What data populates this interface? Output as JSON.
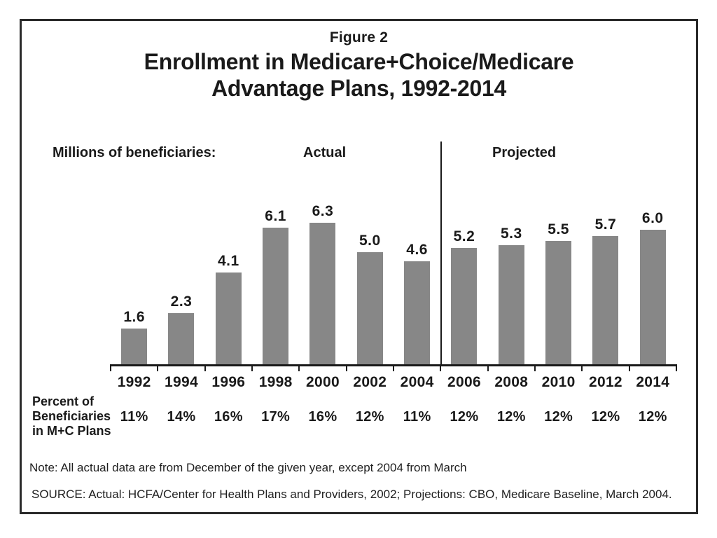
{
  "figure": {
    "label": "Figure 2",
    "title_line1": "Enrollment in Medicare+Choice/Medicare",
    "title_line2": "Advantage Plans, 1992-2014"
  },
  "chart_data": {
    "type": "bar",
    "title": "Enrollment in Medicare+Choice/Medicare Advantage Plans, 1992-2014",
    "unit_label": "Millions of beneficiaries:",
    "section_labels": {
      "actual": "Actual",
      "projected": "Projected"
    },
    "actual_categories_count": 7,
    "categories": [
      "1992",
      "1994",
      "1996",
      "1998",
      "2000",
      "2002",
      "2004",
      "2006",
      "2008",
      "2010",
      "2012",
      "2014"
    ],
    "values": [
      1.6,
      2.3,
      4.1,
      6.1,
      6.3,
      5.0,
      4.6,
      5.2,
      5.3,
      5.5,
      5.7,
      6.0
    ],
    "value_labels": [
      "1.6",
      "2.3",
      "4.1",
      "6.1",
      "6.3",
      "5.0",
      "4.6",
      "5.2",
      "5.3",
      "5.5",
      "5.7",
      "6.0"
    ],
    "percent_row_label": [
      "Percent of",
      "Beneficiaries",
      "in M+C Plans"
    ],
    "percent_values": [
      "11%",
      "14%",
      "16%",
      "17%",
      "16%",
      "12%",
      "11%",
      "12%",
      "12%",
      "12%",
      "12%",
      "12%"
    ],
    "ylim": [
      0,
      7
    ],
    "grid": false,
    "legend": "none",
    "bar_color": "#878787",
    "axis_color": "#1a1a1a"
  },
  "notes": {
    "note": "Note: All actual data are from December of the given year, except 2004 from March",
    "source": "SOURCE: Actual: HCFA/Center for Health Plans and Providers, 2002; Projections: CBO, Medicare Baseline, March 2004."
  }
}
